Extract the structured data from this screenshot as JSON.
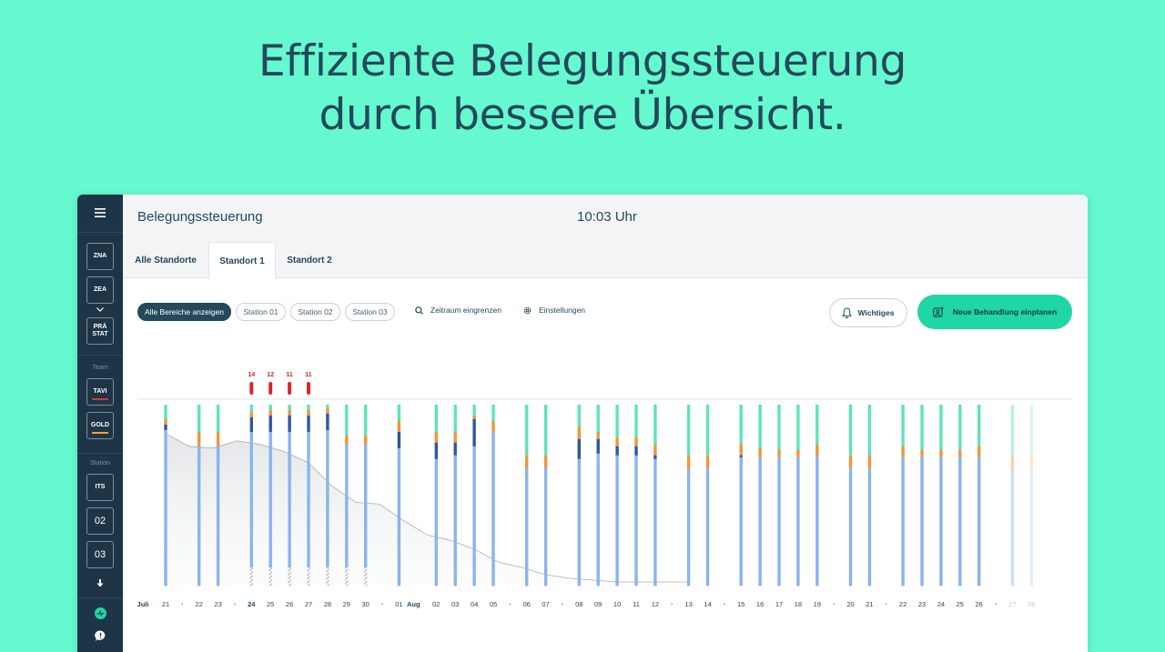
{
  "headline": {
    "line1": "Effiziente Belegungssteuerung",
    "line2": "durch bessere Übersicht."
  },
  "app": {
    "title": "Belegungssteuerung",
    "clock": "10:03 Uhr"
  },
  "sidebar": {
    "menu_icon": "hamburger-icon",
    "buttons_top": [
      "ZNA",
      "ZEA"
    ],
    "chevron_icon": "chevron-down-icon",
    "praestat": "PRÄ STAT",
    "team_label": "Team",
    "team_buttons": [
      {
        "label": "TAVI",
        "underline_color": "#e0313a"
      },
      {
        "label": "GOLD",
        "underline_color": "#f2a33a"
      }
    ],
    "station_label": "Station",
    "station_buttons": [
      "ITS",
      "02",
      "03"
    ],
    "download_icon": "arrow-down-icon",
    "activity_icon": "activity-icon",
    "chat_icon": "chat-icon"
  },
  "tabs": [
    "Alle Standorte",
    "Standort 1",
    "Standort 2"
  ],
  "active_tab": "Standort 1",
  "filters": {
    "chips": [
      "Alle Bereiche anzeigen",
      "Station 01",
      "Station 02",
      "Station 03"
    ],
    "active_chip": "Alle Bereiche anzeigen",
    "zeitraum": "Zeitraum eingrenzen",
    "einstellungen": "Einstellungen",
    "zeitraum_icon": "search-icon",
    "einstellungen_icon": "gear-icon"
  },
  "actions": {
    "wichtiges": "Wichtiges",
    "wichtiges_icon": "bell-icon",
    "neu": "Neue Behandlung einplanen",
    "neu_icon": "add-patient-icon"
  },
  "colors": {
    "mint": "#66f9d0",
    "navy": "#1e3547",
    "teal": "#5fe3b9",
    "orange": "#f0963a",
    "dark_blue": "#2f57a0",
    "light_blue": "#8ab4ea",
    "red": "#d7262e",
    "accent": "#1fd6a4"
  },
  "chart_data": {
    "type": "bar",
    "month_labels": [
      {
        "label": "Juli",
        "before_index": 0
      },
      {
        "label": "Aug",
        "before_index": 11
      }
    ],
    "days": [
      "21",
      "22",
      "23",
      "24",
      "25",
      "26",
      "27",
      "28",
      "29",
      "30",
      "01",
      "02",
      "03",
      "04",
      "05",
      "06",
      "07",
      "08",
      "09",
      "10",
      "11",
      "12",
      "13",
      "14",
      "15",
      "16",
      "17",
      "18",
      "19",
      "20",
      "21",
      "22",
      "23",
      "24",
      "25",
      "26",
      "27",
      "28"
    ],
    "bold_days": [
      3
    ],
    "separators_after": [
      0,
      2,
      9,
      14,
      16,
      21,
      23,
      28,
      30,
      35
    ],
    "overflow_labels": [
      "14",
      "12",
      "11",
      "11"
    ],
    "overflow_index": [
      3,
      4,
      5,
      6
    ],
    "segments": [
      [
        0.08,
        0.03,
        0.03,
        0.86,
        0
      ],
      [
        0.15,
        0.08,
        0,
        0.77,
        0
      ],
      [
        0.15,
        0.08,
        0,
        0.77,
        0
      ],
      [
        0.04,
        0.03,
        0.08,
        0.75,
        0.1
      ],
      [
        0.03,
        0.03,
        0.09,
        0.75,
        0.1
      ],
      [
        0.03,
        0.03,
        0.09,
        0.75,
        0.1
      ],
      [
        0.03,
        0.03,
        0.09,
        0.75,
        0.1
      ],
      [
        0.02,
        0.03,
        0.09,
        0.76,
        0.1
      ],
      [
        0.17,
        0.05,
        0,
        0.68,
        0.1
      ],
      [
        0.17,
        0.05,
        0,
        0.68,
        0.1
      ],
      [
        0.09,
        0.06,
        0.09,
        0.76,
        0
      ],
      [
        0.15,
        0.06,
        0.09,
        0.7,
        0
      ],
      [
        0.15,
        0.06,
        0.07,
        0.72,
        0
      ],
      [
        0.06,
        0.02,
        0.15,
        0.77,
        0
      ],
      [
        0.09,
        0.06,
        0,
        0.85,
        0
      ],
      [
        0.28,
        0.07,
        0,
        0.65,
        0
      ],
      [
        0.28,
        0.07,
        0,
        0.65,
        0
      ],
      [
        0.12,
        0.07,
        0.11,
        0.7,
        0
      ],
      [
        0.15,
        0.04,
        0.08,
        0.73,
        0
      ],
      [
        0.18,
        0.05,
        0.05,
        0.72,
        0
      ],
      [
        0.18,
        0.05,
        0.05,
        0.72,
        0
      ],
      [
        0.22,
        0.06,
        0.02,
        0.7,
        0
      ],
      [
        0.28,
        0.07,
        0,
        0.65,
        0
      ],
      [
        0.28,
        0.07,
        0,
        0.65,
        0
      ],
      [
        0.22,
        0.06,
        0.01,
        0.71,
        0
      ],
      [
        0.24,
        0.05,
        0,
        0.71,
        0
      ],
      [
        0.25,
        0.04,
        0,
        0.71,
        0
      ],
      [
        0.25,
        0.04,
        0,
        0.71,
        0
      ],
      [
        0.22,
        0.06,
        0,
        0.72,
        0
      ],
      [
        0.28,
        0.07,
        0,
        0.65,
        0
      ],
      [
        0.28,
        0.07,
        0,
        0.65,
        0
      ],
      [
        0.23,
        0.06,
        0,
        0.71,
        0
      ],
      [
        0.25,
        0.04,
        0,
        0.71,
        0
      ],
      [
        0.25,
        0.04,
        0,
        0.71,
        0
      ],
      [
        0.25,
        0.04,
        0,
        0.71,
        0
      ],
      [
        0.23,
        0.06,
        0,
        0.71,
        0
      ],
      [
        0.28,
        0.07,
        0,
        0.65,
        0
      ],
      [
        0.28,
        0.07,
        0,
        0.65,
        0
      ]
    ],
    "segment_order": [
      "teal",
      "orange",
      "dark_blue",
      "light_blue",
      "hatched"
    ],
    "trend": [
      0.84,
      0.77,
      0.76,
      0.8,
      0.78,
      0.74,
      0.68,
      0.55,
      0.46,
      0.45,
      0.36,
      0.28,
      0.25,
      0.2,
      0.13,
      0.1,
      0.06,
      0.04,
      0.03,
      0.02,
      0.02,
      0.02,
      0.02
    ],
    "faded_from_index": 36
  }
}
